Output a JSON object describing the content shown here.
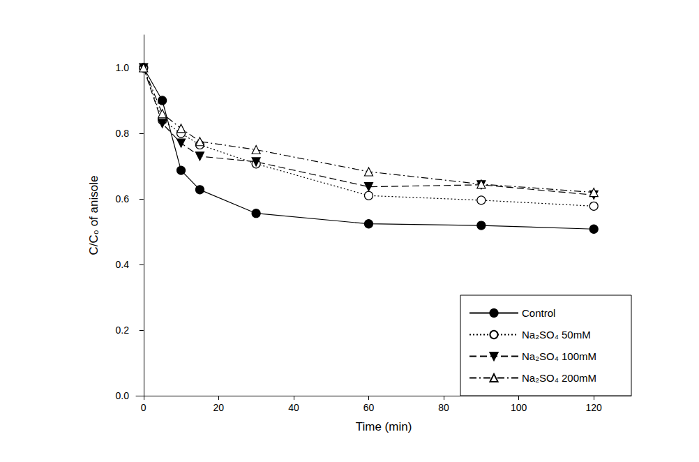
{
  "chart_data": {
    "type": "line",
    "x_label": "Time (min)",
    "y_label": "C/C₀ of anisole",
    "x": [
      0,
      5,
      10,
      15,
      30,
      60,
      90,
      120
    ],
    "series": [
      {
        "name": "Control",
        "color": "#000000",
        "marker": "circle",
        "line_style": "solid",
        "values": [
          1.0,
          0.9,
          0.687,
          0.628,
          0.556,
          0.524,
          0.519,
          0.508
        ]
      },
      {
        "name": "Na₂SO₄ 50mM",
        "color": "#000000",
        "marker": "circle_open",
        "line_style": "dotted",
        "values": [
          1.0,
          0.84,
          0.8,
          0.765,
          0.707,
          0.61,
          0.596,
          0.578
        ]
      },
      {
        "name": "Na₂SO₄ 100mM",
        "color": "#000000",
        "marker": "triangle_down",
        "line_style": "dashed",
        "values": [
          1.0,
          0.83,
          0.77,
          0.73,
          0.713,
          0.637,
          0.643,
          0.612
        ]
      },
      {
        "name": "Na₂SO₄ 200mM",
        "color": "#000000",
        "marker": "triangle_open",
        "line_style": "dashdot",
        "values": [
          1.0,
          0.86,
          0.815,
          0.775,
          0.75,
          0.683,
          0.645,
          0.62
        ]
      }
    ],
    "xlim": [
      -2,
      130
    ],
    "xticks": [
      0,
      20,
      40,
      60,
      80,
      100,
      120
    ],
    "ylim": [
      0,
      1.1
    ],
    "yticks": [
      {
        "value": 0,
        "label": "0.0"
      },
      {
        "value": 0.2,
        "label": "0.2"
      },
      {
        "value": 0.4,
        "label": "0.4"
      },
      {
        "value": 0.6,
        "label": "0.6"
      },
      {
        "value": 0.8,
        "label": "0.8"
      },
      {
        "value": 1.0,
        "label": "1.0"
      }
    ],
    "grid": false,
    "legend": "lower right"
  }
}
